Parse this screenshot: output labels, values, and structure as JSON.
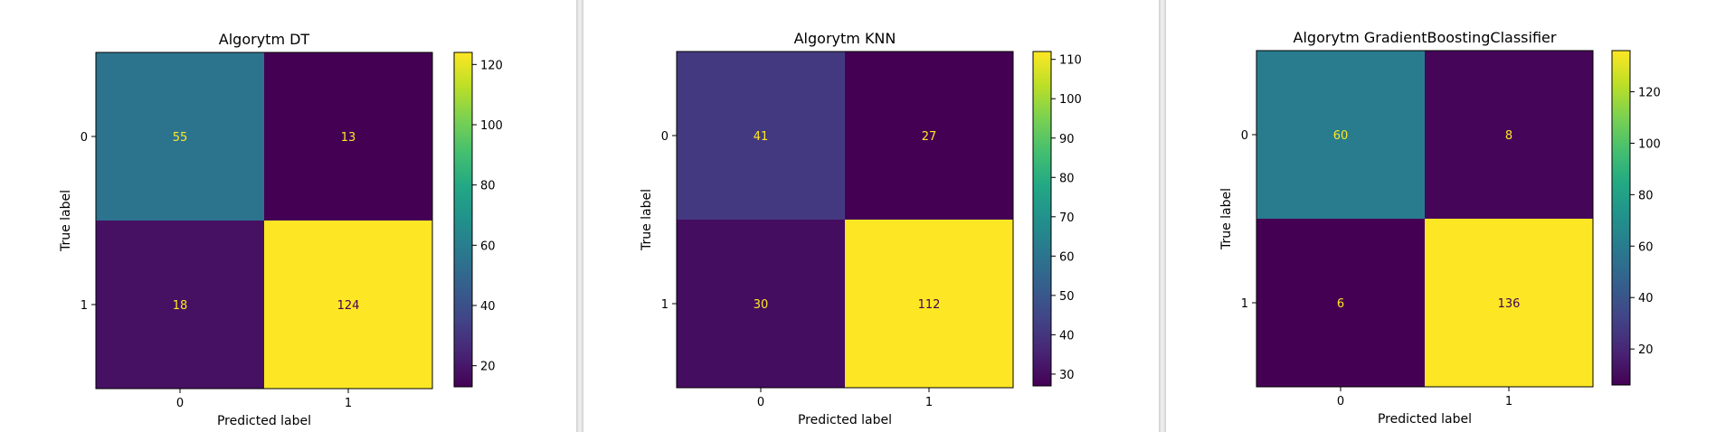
{
  "colors": {
    "viridis": [
      "#440154",
      "#482475",
      "#414487",
      "#355f8d",
      "#2a788e",
      "#21918c",
      "#22a884",
      "#44bf70",
      "#7ad151",
      "#bddf26",
      "#fde725"
    ],
    "cell_text": "#fde725",
    "axis": "#000000"
  },
  "chart_data": [
    {
      "type": "heatmap",
      "title": "Algorytm DT",
      "xlabel": "Predicted label",
      "ylabel": "True label",
      "x_ticks": [
        "0",
        "1"
      ],
      "y_ticks": [
        "0",
        "1"
      ],
      "values": [
        [
          55,
          13
        ],
        [
          18,
          124
        ]
      ],
      "colorbar": {
        "min": 13,
        "max": 124,
        "ticks": [
          20,
          40,
          60,
          80,
          100,
          120
        ]
      }
    },
    {
      "type": "heatmap",
      "title": "Algorytm KNN",
      "xlabel": "Predicted label",
      "ylabel": "True label",
      "x_ticks": [
        "0",
        "1"
      ],
      "y_ticks": [
        "0",
        "1"
      ],
      "values": [
        [
          41,
          27
        ],
        [
          30,
          112
        ]
      ],
      "colorbar": {
        "min": 27,
        "max": 112,
        "ticks": [
          30,
          40,
          50,
          60,
          70,
          80,
          90,
          100,
          110
        ]
      }
    },
    {
      "type": "heatmap",
      "title": "Algorytm GradientBoostingClassifier",
      "xlabel": "Predicted label",
      "ylabel": "True label",
      "x_ticks": [
        "0",
        "1"
      ],
      "y_ticks": [
        "0",
        "1"
      ],
      "values": [
        [
          60,
          8
        ],
        [
          6,
          136
        ]
      ],
      "colorbar": {
        "min": 6,
        "max": 136,
        "ticks": [
          20,
          40,
          60,
          80,
          100,
          120
        ]
      }
    }
  ]
}
